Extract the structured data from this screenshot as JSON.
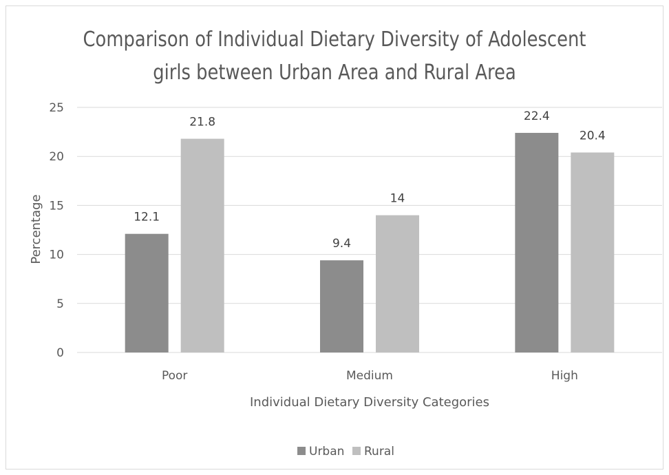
{
  "chart_data": {
    "type": "bar",
    "title": [
      "Comparison of Individual Dietary Diversity of Adolescent",
      "girls between Urban Area and Rural Area"
    ],
    "xlabel": "Individual Dietary Diversity Categories",
    "ylabel": "Percentage",
    "categories": [
      "Poor",
      "Medium",
      "High"
    ],
    "series": [
      {
        "name": "Urban",
        "values": [
          12.1,
          9.4,
          22.4
        ],
        "labels": [
          "12.1",
          "9.4",
          "22.4"
        ],
        "color": "#8c8c8c"
      },
      {
        "name": "Rural",
        "values": [
          21.8,
          14,
          20.4
        ],
        "labels": [
          "21.8",
          "14",
          "20.4"
        ],
        "color": "#bfbfbf"
      }
    ],
    "ylim": [
      0,
      25
    ],
    "yticks": [
      0,
      5,
      10,
      15,
      20,
      25
    ],
    "grid": true,
    "legend": "bottom",
    "gridColor": "#d9d9d9"
  }
}
